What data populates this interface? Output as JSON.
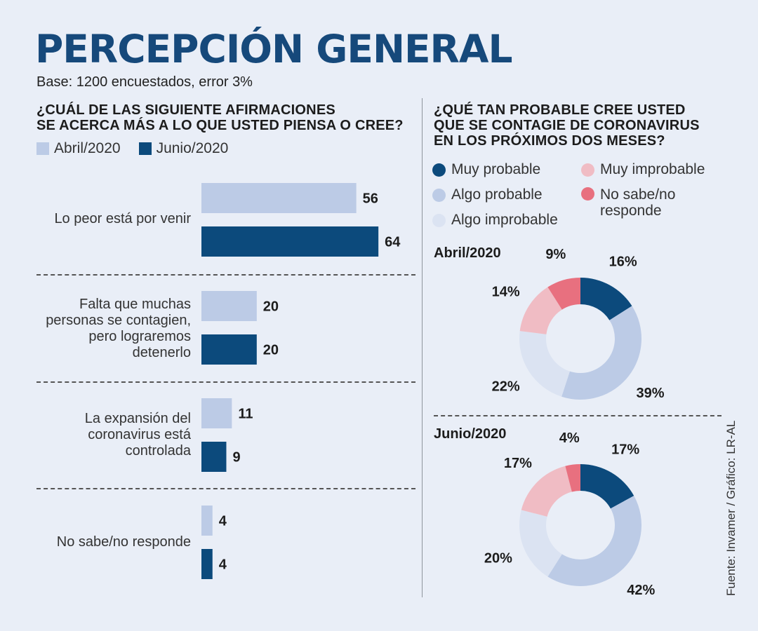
{
  "header": {
    "title": "PERCEPCIÓN GENERAL",
    "subtitle": "Base: 1200 encuestados, error 3%"
  },
  "source": "Fuente: Invamer / Gráfico: LR-AL",
  "chart_data": [
    {
      "type": "bar",
      "orientation": "horizontal",
      "title_lines": [
        "¿CUÁL DE LAS SIGUIENTE AFIRMACIONES",
        "SE ACERCA MÁS A LO QUE USTED PIENSA O CREE?"
      ],
      "categories": [
        [
          "Lo peor está por venir"
        ],
        [
          "Falta que muchas",
          "personas se contagien,",
          "pero lograremos",
          "detenerlo"
        ],
        [
          "La expansión del",
          "coronavirus está",
          "controlada"
        ],
        [
          "No sabe/no responde"
        ]
      ],
      "series": [
        {
          "name": "Abril/2020",
          "values": [
            56,
            20,
            11,
            4
          ],
          "color": "#bccbe6"
        },
        {
          "name": "Junio/2020",
          "values": [
            64,
            20,
            9,
            4
          ],
          "color": "#0c4a7c"
        }
      ]
    },
    {
      "type": "pie",
      "title_lines": [
        "¿QUÉ TAN PROBABLE CREE USTED",
        "QUE SE CONTAGIE DE CORONAVIRUS",
        "EN LOS PRÓXIMOS DOS MESES?"
      ],
      "legend": [
        {
          "label": "Muy probable",
          "color": "#0c4a7c"
        },
        {
          "label": "Algo probable",
          "color": "#bccbe6"
        },
        {
          "label": "Algo improbable",
          "color": "#dbe3f2"
        },
        {
          "label": "Muy improbable",
          "color": "#f0bcc4"
        },
        {
          "label": "No sabe/no responde",
          "color": "#e8707f"
        }
      ],
      "charts": [
        {
          "label": "Abril/2020",
          "values": [
            16,
            39,
            22,
            14,
            9
          ],
          "value_labels": [
            "16%",
            "39%",
            "22%",
            "14%",
            "9%"
          ]
        },
        {
          "label": "Junio/2020",
          "values": [
            17,
            42,
            20,
            17,
            4
          ],
          "value_labels": [
            "17%",
            "42%",
            "20%",
            "17%",
            "4%"
          ]
        }
      ]
    }
  ]
}
